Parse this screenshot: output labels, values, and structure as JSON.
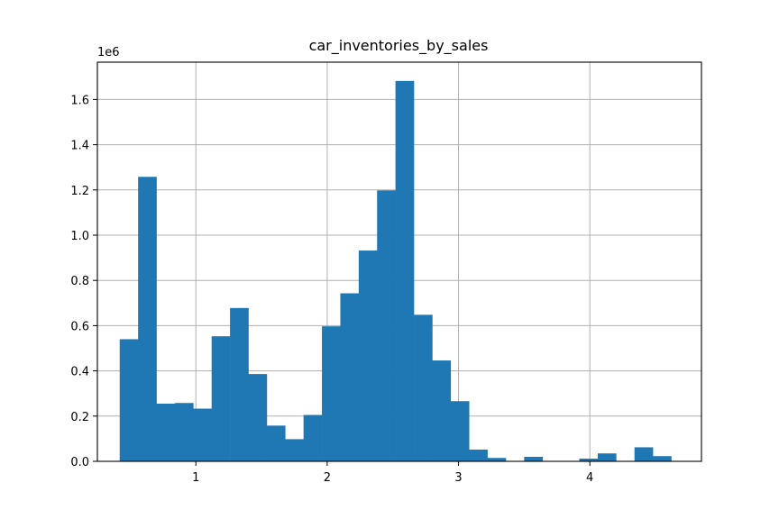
{
  "chart_data": {
    "type": "bar",
    "title": "car_inventories_by_sales",
    "xlabel": "",
    "ylabel": "",
    "offset_label": "1e6",
    "grid": true,
    "xlim": [
      0.25,
      4.85
    ],
    "ylim": [
      0,
      1765000
    ],
    "x_ticks": [
      1,
      2,
      3,
      4
    ],
    "x_tick_labels": [
      "1",
      "2",
      "3",
      "4"
    ],
    "y_ticks": [
      0,
      200000,
      400000,
      600000,
      800000,
      1000000,
      1200000,
      1400000,
      1600000
    ],
    "y_tick_labels": [
      "0.0",
      "0.2",
      "0.4",
      "0.6",
      "0.8",
      "1.0",
      "1.2",
      "1.4",
      "1.6"
    ],
    "bins": {
      "start": 0.42,
      "width": 0.14,
      "counts": [
        540000,
        1258000,
        255000,
        258000,
        233000,
        553000,
        678000,
        386000,
        158000,
        98000,
        205000,
        597000,
        743000,
        932000,
        1198000,
        1682000,
        648000,
        446000,
        266000,
        52000,
        15000,
        0,
        20000,
        0,
        0,
        12000,
        35000,
        0,
        62000,
        23000
      ]
    },
    "bar_color": "#1f77b4"
  }
}
